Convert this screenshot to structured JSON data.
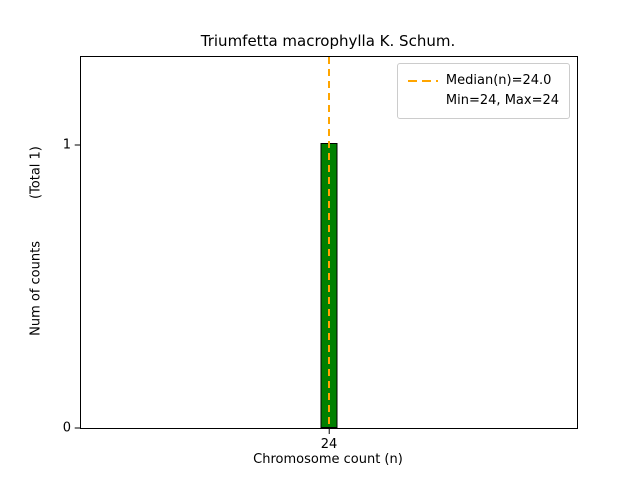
{
  "title": "Triumfetta macrophylla K. Schum.",
  "xlabel": "Chromosome count (n)",
  "ylabel_counts": "Num of counts",
  "ylabel_total": "(Total 1)",
  "legend": {
    "median_label": "Median(n)=24.0",
    "minmax_label": "Min=24, Max=24"
  },
  "colors": {
    "bar_fill": "#008000",
    "bar_edge": "#000000",
    "median_line": "#ffa500",
    "legend_border": "#cccccc"
  },
  "chart_data": {
    "type": "bar",
    "categories": [
      24
    ],
    "values": [
      1
    ],
    "title": "Triumfetta macrophylla K. Schum.",
    "xlabel": "Chromosome count (n)",
    "ylabel": "Num of counts (Total 1)",
    "ylim": [
      0,
      1.31
    ],
    "yticks": [
      0,
      1
    ],
    "xticks": [
      24
    ],
    "median": 24.0,
    "min": 24,
    "max": 24,
    "total_counts": 1,
    "legend_position": "upper right",
    "grid": false
  }
}
